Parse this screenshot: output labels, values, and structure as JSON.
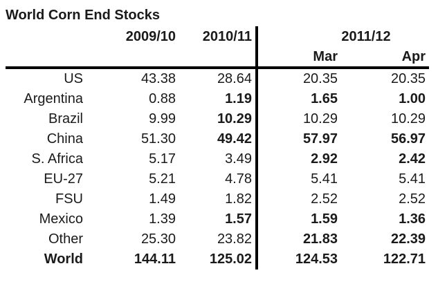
{
  "title": "World Corn End Stocks",
  "colors": {
    "text": "#1a1a1a",
    "rule": "#000000",
    "background": "#ffffff"
  },
  "table": {
    "headers": {
      "y1": "2009/10",
      "y2": "2010/11",
      "y3": "2011/12",
      "mar": "Mar",
      "apr": "Apr"
    },
    "rows": [
      {
        "label": "US",
        "label_bold": false,
        "values": [
          "43.38",
          "28.64",
          "20.35",
          "20.35"
        ],
        "bold": [
          false,
          false,
          false,
          false
        ]
      },
      {
        "label": "Argentina",
        "label_bold": false,
        "values": [
          "0.88",
          "1.19",
          "1.65",
          "1.00"
        ],
        "bold": [
          false,
          true,
          true,
          true
        ]
      },
      {
        "label": "Brazil",
        "label_bold": false,
        "values": [
          "9.99",
          "10.29",
          "10.29",
          "10.29"
        ],
        "bold": [
          false,
          true,
          false,
          false
        ]
      },
      {
        "label": "China",
        "label_bold": false,
        "values": [
          "51.30",
          "49.42",
          "57.97",
          "56.97"
        ],
        "bold": [
          false,
          true,
          true,
          true
        ]
      },
      {
        "label": "S. Africa",
        "label_bold": false,
        "values": [
          "5.17",
          "3.49",
          "2.92",
          "2.42"
        ],
        "bold": [
          false,
          false,
          true,
          true
        ]
      },
      {
        "label": "EU-27",
        "label_bold": false,
        "values": [
          "5.21",
          "4.78",
          "5.41",
          "5.41"
        ],
        "bold": [
          false,
          false,
          false,
          false
        ]
      },
      {
        "label": "FSU",
        "label_bold": false,
        "values": [
          "1.49",
          "1.82",
          "2.52",
          "2.52"
        ],
        "bold": [
          false,
          false,
          false,
          false
        ]
      },
      {
        "label": "Mexico",
        "label_bold": false,
        "values": [
          "1.39",
          "1.57",
          "1.59",
          "1.36"
        ],
        "bold": [
          false,
          true,
          true,
          true
        ]
      },
      {
        "label": "Other",
        "label_bold": false,
        "values": [
          "25.30",
          "23.82",
          "21.83",
          "22.39"
        ],
        "bold": [
          false,
          false,
          true,
          true
        ]
      },
      {
        "label": "World",
        "label_bold": true,
        "values": [
          "144.11",
          "125.02",
          "124.53",
          "122.71"
        ],
        "bold": [
          true,
          true,
          true,
          true
        ]
      }
    ]
  },
  "chart_data": {
    "type": "table",
    "title": "World Corn End Stocks",
    "columns": [
      "",
      "2009/10",
      "2010/11",
      "2011/12 Mar",
      "2011/12 Apr"
    ],
    "rows": [
      [
        "US",
        43.38,
        28.64,
        20.35,
        20.35
      ],
      [
        "Argentina",
        0.88,
        1.19,
        1.65,
        1.0
      ],
      [
        "Brazil",
        9.99,
        10.29,
        10.29,
        10.29
      ],
      [
        "China",
        51.3,
        49.42,
        57.97,
        56.97
      ],
      [
        "S. Africa",
        5.17,
        3.49,
        2.92,
        2.42
      ],
      [
        "EU-27",
        5.21,
        4.78,
        5.41,
        5.41
      ],
      [
        "FSU",
        1.49,
        1.82,
        2.52,
        2.52
      ],
      [
        "Mexico",
        1.39,
        1.57,
        1.59,
        1.36
      ],
      [
        "Other",
        25.3,
        23.82,
        21.83,
        22.39
      ],
      [
        "World",
        144.11,
        125.02,
        124.53,
        122.71
      ]
    ]
  }
}
